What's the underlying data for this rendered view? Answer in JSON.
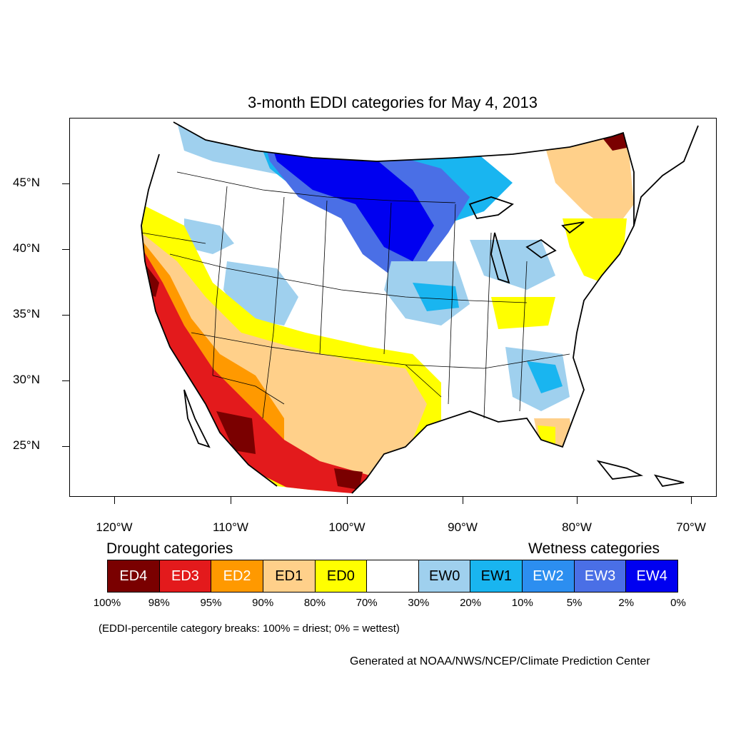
{
  "title": "3-month EDDI categories for May 4, 2013",
  "lat_labels": [
    "45°N",
    "40°N",
    "35°N",
    "30°N",
    "25°N"
  ],
  "lon_labels": [
    "120°W",
    "110°W",
    "100°W",
    "90°W",
    "80°W",
    "70°W"
  ],
  "legend": {
    "drought_heading": "Drought categories",
    "wetness_heading": "Wetness categories",
    "categories": [
      {
        "label": "ED4",
        "color": "#7a0000",
        "text_color": "#ffffff"
      },
      {
        "label": "ED3",
        "color": "#e31a1c",
        "text_color": "#ffffff"
      },
      {
        "label": "ED2",
        "color": "#ff9900",
        "text_color": "#ffffff"
      },
      {
        "label": "ED1",
        "color": "#ffd08a",
        "text_color": "#000000"
      },
      {
        "label": "ED0",
        "color": "#ffff00",
        "text_color": "#000000"
      },
      {
        "label": "",
        "color": "#ffffff",
        "text_color": "#000000"
      },
      {
        "label": "EW0",
        "color": "#9fd0ee",
        "text_color": "#000000"
      },
      {
        "label": "EW1",
        "color": "#19b5f0",
        "text_color": "#000000"
      },
      {
        "label": "EW2",
        "color": "#2c8ef0",
        "text_color": "#ffffff"
      },
      {
        "label": "EW3",
        "color": "#4a6fe6",
        "text_color": "#ffffff"
      },
      {
        "label": "EW4",
        "color": "#0000f0",
        "text_color": "#ffffff"
      }
    ],
    "percentiles": [
      "100%",
      "98%",
      "95%",
      "90%",
      "80%",
      "70%",
      "30%",
      "20%",
      "10%",
      "5%",
      "2%",
      "0%"
    ]
  },
  "footnote": "(EDDI-percentile category breaks: 100% = driest; 0% = wettest)",
  "credit": "Generated at NOAA/NWS/NCEP/Climate Prediction Center"
}
